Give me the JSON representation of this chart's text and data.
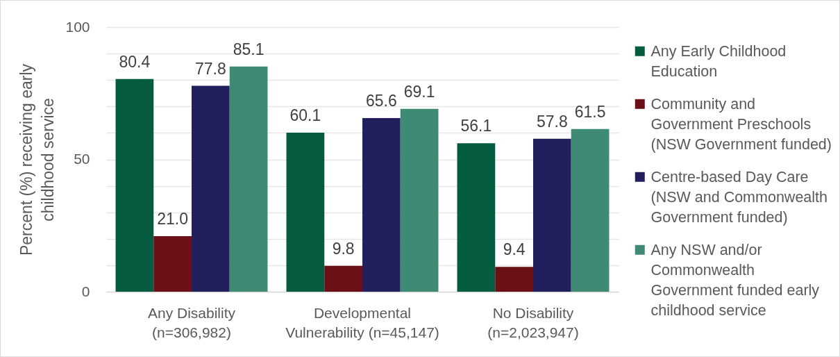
{
  "chart_data": {
    "type": "bar",
    "categories": [
      "Any Disability (n=306,982)",
      "Developmental Vulnerability (n=45,147)",
      "No Disability (n=2,023,947)"
    ],
    "ylabel": "Percent (%) receiving early childhood service",
    "series": [
      {
        "name": "Any Early Childhood Education",
        "color": "#065c40",
        "values": [
          80.4,
          60.1,
          56.1
        ],
        "value_labels": [
          "80.4",
          "60.1",
          "56.1"
        ]
      },
      {
        "name": "Community and Government Preschools (NSW Government funded)",
        "color": "#6b1016",
        "values": [
          21.0,
          9.8,
          9.4
        ],
        "value_labels": [
          "21.0",
          "9.8",
          "9.4"
        ]
      },
      {
        "name": "Centre-based Day Care (NSW and Commonwealth Government funded)",
        "color": "#21205c",
        "values": [
          77.8,
          65.6,
          57.8
        ],
        "value_labels": [
          "77.8",
          "65.6",
          "57.8"
        ]
      },
      {
        "name": "Any NSW and/or Commonwealth Government funded early childhood service",
        "color": "#3e8a74",
        "values": [
          85.1,
          69.1,
          61.5
        ],
        "value_labels": [
          "85.1",
          "69.1",
          "61.5"
        ]
      }
    ],
    "ylim": [
      0,
      100
    ],
    "yticks": [
      0,
      {
        "value": 10,
        "label": null
      },
      {
        "value": 20,
        "label": null
      },
      {
        "value": 30,
        "label": null
      },
      {
        "value": 40,
        "label": null
      },
      50,
      {
        "value": 60,
        "label": null
      },
      {
        "value": 70,
        "label": null
      },
      {
        "value": 80,
        "label": null
      },
      {
        "value": 90,
        "label": null
      },
      100
    ],
    "grid": "y",
    "legend": "right"
  }
}
